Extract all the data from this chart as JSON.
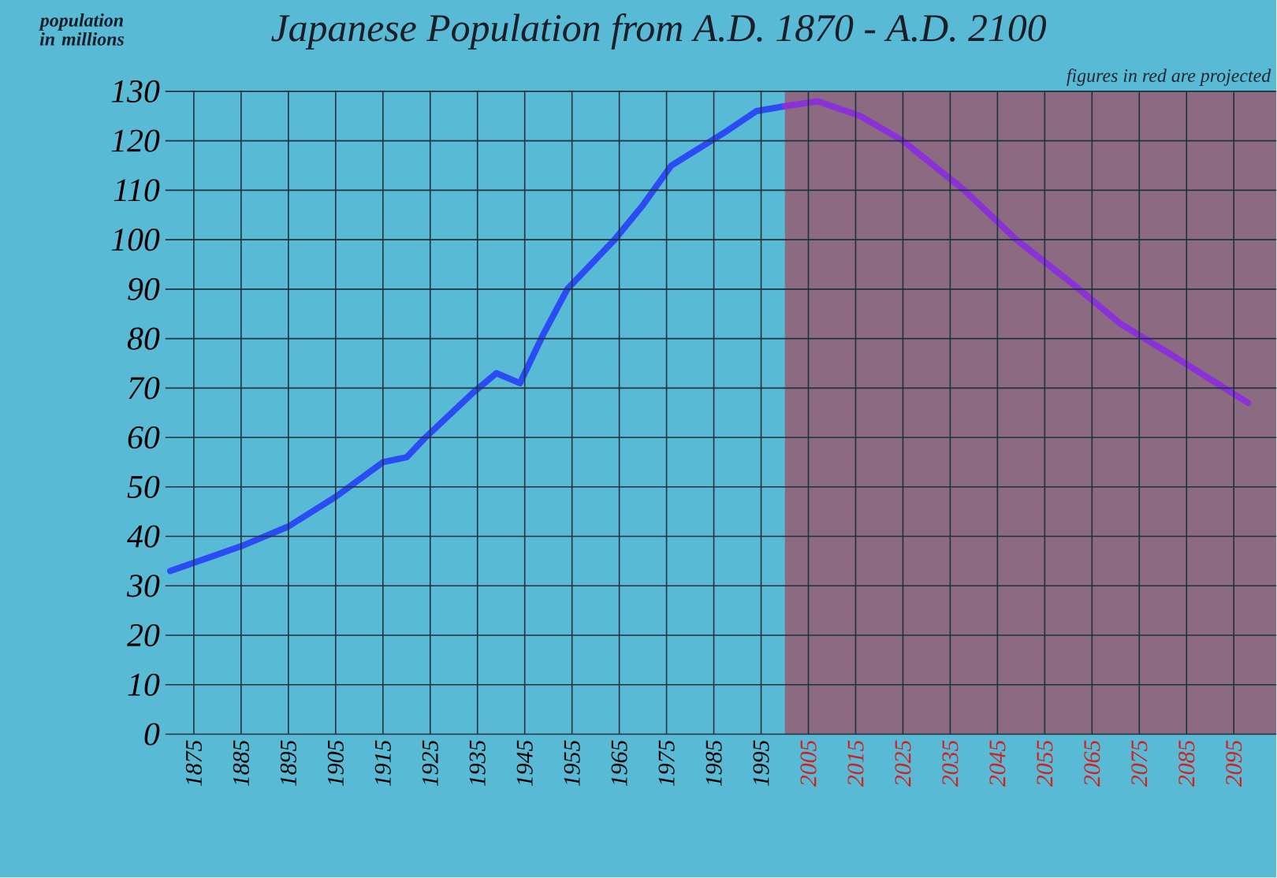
{
  "chart_data": {
    "type": "line",
    "title": "Japanese Population from A.D. 1870 - A.D. 2100",
    "ylabel": "population in millions",
    "series": [
      {
        "color": "#2b4cf5",
        "x": [
          1870,
          1885,
          1895,
          1905,
          1915,
          1920,
          1924,
          1934,
          1939,
          1944,
          1949,
          1954,
          1964,
          1970,
          1976,
          1987,
          1994,
          2000
        ],
        "values": [
          33,
          38,
          42,
          48,
          55,
          56,
          60,
          69,
          73,
          71,
          81,
          90,
          100,
          107,
          115,
          121.5,
          126,
          127
        ]
      },
      {
        "color": "#8a32d8",
        "x": [
          2000,
          2007,
          2016,
          2025,
          2038,
          2049,
          2061,
          2071,
          2083,
          2098
        ],
        "values": [
          127,
          128,
          125,
          120,
          110,
          100,
          91,
          83,
          76,
          67
        ]
      }
    ],
    "xlim": [
      1869,
      2104
    ],
    "ylim": [
      0,
      130
    ],
    "xticks": [
      1875,
      1885,
      1895,
      1905,
      1915,
      1925,
      1935,
      1945,
      1955,
      1965,
      1975,
      1985,
      1995,
      2005,
      2015,
      2025,
      2035,
      2045,
      2055,
      2065,
      2075,
      2085,
      2095
    ],
    "yticks": [
      0,
      10,
      20,
      30,
      40,
      50,
      60,
      70,
      80,
      90,
      100,
      110,
      120,
      130
    ],
    "bands": [
      {
        "axis": "x",
        "from": 2000,
        "to": 2104,
        "label": "figures in red are projected",
        "color": "#8c6a82"
      }
    ],
    "grid": true,
    "marker": "none",
    "line_style": "solid"
  }
}
